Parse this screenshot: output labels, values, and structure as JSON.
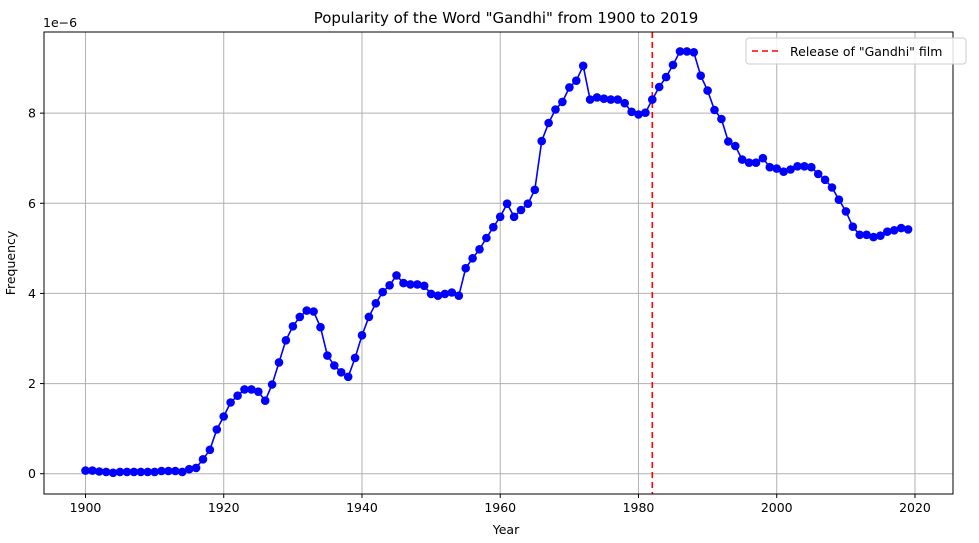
{
  "chart_data": {
    "type": "line",
    "title": "Popularity of the Word \"Gandhi\" from 1900 to 2019",
    "xlabel": "Year",
    "ylabel": "Frequency",
    "y_scale_label": "1e−6",
    "xlim": [
      1894,
      2025.5
    ],
    "ylim": [
      -0.45,
      9.8
    ],
    "xticks": [
      1900,
      1920,
      1940,
      1960,
      1980,
      2000,
      2020
    ],
    "yticks": [
      0,
      2,
      4,
      6,
      8
    ],
    "grid": true,
    "legend_position": "upper right",
    "series": [
      {
        "name": "Gandhi",
        "color": "#0000ff",
        "marker": "o",
        "x": [
          1900,
          1901,
          1902,
          1903,
          1904,
          1905,
          1906,
          1907,
          1908,
          1909,
          1910,
          1911,
          1912,
          1913,
          1914,
          1915,
          1916,
          1917,
          1918,
          1919,
          1920,
          1921,
          1922,
          1923,
          1924,
          1925,
          1926,
          1927,
          1928,
          1929,
          1930,
          1931,
          1932,
          1933,
          1934,
          1935,
          1936,
          1937,
          1938,
          1939,
          1940,
          1941,
          1942,
          1943,
          1944,
          1945,
          1946,
          1947,
          1948,
          1949,
          1950,
          1951,
          1952,
          1953,
          1954,
          1955,
          1956,
          1957,
          1958,
          1959,
          1960,
          1961,
          1962,
          1963,
          1964,
          1965,
          1966,
          1967,
          1968,
          1969,
          1970,
          1971,
          1972,
          1973,
          1974,
          1975,
          1976,
          1977,
          1978,
          1979,
          1980,
          1981,
          1982,
          1983,
          1984,
          1985,
          1986,
          1987,
          1988,
          1989,
          1990,
          1991,
          1992,
          1993,
          1994,
          1995,
          1996,
          1997,
          1998,
          1999,
          2000,
          2001,
          2002,
          2003,
          2004,
          2005,
          2006,
          2007,
          2008,
          2009,
          2010,
          2011,
          2012,
          2013,
          2014,
          2015,
          2016,
          2017,
          2018,
          2019
        ],
        "values": [
          0.07,
          0.07,
          0.05,
          0.04,
          0.02,
          0.04,
          0.04,
          0.04,
          0.04,
          0.04,
          0.04,
          0.06,
          0.06,
          0.06,
          0.04,
          0.1,
          0.13,
          0.32,
          0.53,
          0.98,
          1.27,
          1.58,
          1.73,
          1.87,
          1.87,
          1.82,
          1.62,
          1.98,
          2.47,
          2.96,
          3.27,
          3.48,
          3.62,
          3.6,
          3.25,
          2.62,
          2.4,
          2.25,
          2.15,
          2.57,
          3.07,
          3.48,
          3.78,
          4.03,
          4.18,
          4.4,
          4.23,
          4.2,
          4.2,
          4.17,
          3.99,
          3.95,
          3.99,
          4.02,
          3.95,
          4.56,
          4.78,
          4.98,
          5.23,
          5.47,
          5.7,
          5.99,
          5.7,
          5.85,
          5.99,
          6.3,
          7.38,
          7.78,
          8.08,
          8.25,
          8.57,
          8.72,
          9.05,
          8.3,
          8.35,
          8.32,
          8.3,
          8.3,
          8.22,
          8.03,
          7.97,
          8.01,
          8.3,
          8.58,
          8.8,
          9.07,
          9.37,
          9.37,
          9.35,
          8.83,
          8.5,
          8.07,
          7.87,
          7.37,
          7.27,
          6.97,
          6.9,
          6.9,
          7.0,
          6.8,
          6.77,
          6.7,
          6.75,
          6.82,
          6.82,
          6.8,
          6.65,
          6.52,
          6.35,
          6.08,
          5.82,
          5.48,
          5.3,
          5.3,
          5.25,
          5.28,
          5.37,
          5.4,
          5.45,
          5.42
        ]
      }
    ],
    "annotations": [
      {
        "type": "vline",
        "x": 1982,
        "color": "#ff0000",
        "style": "dashed",
        "label": "Release of \"Gandhi\" film"
      }
    ]
  },
  "legend": {
    "items": [
      {
        "label": "Release of \"Gandhi\" film",
        "color": "#ff0000",
        "style": "dashed"
      }
    ]
  }
}
